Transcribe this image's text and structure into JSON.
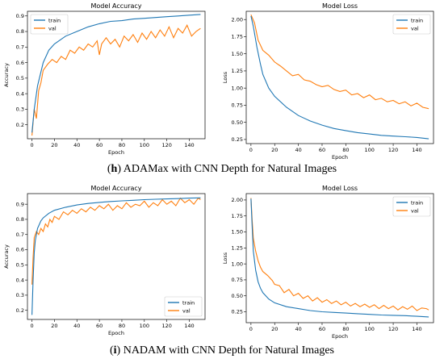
{
  "colors": {
    "train": "#1f77b4",
    "val": "#ff7f0e"
  },
  "captions": [
    {
      "prefix": "(",
      "letter": "h",
      "rest": ") ADAMax with CNN Depth for Natural Images"
    },
    {
      "prefix": "(",
      "letter": "i",
      "rest": ") NADAM with CNN Depth for Natural Images"
    }
  ],
  "chart_data": [
    {
      "type": "line",
      "title": "Model Accuracy",
      "xlabel": "Epoch",
      "ylabel": "Accuracy",
      "xlim": [
        -4,
        154
      ],
      "ylim": [
        0.11,
        0.93
      ],
      "xticks": [
        0,
        20,
        40,
        60,
        80,
        100,
        120,
        140
      ],
      "yticks": [
        0.2,
        0.3,
        0.4,
        0.5,
        0.6,
        0.7,
        0.8,
        0.9
      ],
      "ytick_labels": [
        "0.2",
        "0.3",
        "0.4",
        "0.5",
        "0.6",
        "0.7",
        "0.8",
        "0.9"
      ],
      "legend": "top-left",
      "series": [
        {
          "name": "train",
          "color_key": "train",
          "x": [
            0,
            2,
            5,
            10,
            15,
            20,
            30,
            40,
            50,
            60,
            70,
            80,
            90,
            100,
            110,
            120,
            130,
            140,
            150
          ],
          "y": [
            0.15,
            0.3,
            0.45,
            0.6,
            0.68,
            0.72,
            0.77,
            0.8,
            0.83,
            0.85,
            0.865,
            0.87,
            0.88,
            0.885,
            0.89,
            0.895,
            0.9,
            0.905,
            0.91
          ]
        },
        {
          "name": "val",
          "color_key": "val",
          "x": [
            0,
            2,
            4,
            6,
            8,
            10,
            14,
            18,
            22,
            26,
            30,
            34,
            38,
            42,
            46,
            50,
            54,
            58,
            60,
            62,
            66,
            70,
            74,
            78,
            82,
            86,
            90,
            94,
            98,
            102,
            106,
            110,
            114,
            118,
            122,
            126,
            130,
            134,
            138,
            142,
            146,
            150
          ],
          "y": [
            0.13,
            0.3,
            0.24,
            0.42,
            0.47,
            0.55,
            0.59,
            0.62,
            0.6,
            0.64,
            0.62,
            0.68,
            0.66,
            0.7,
            0.68,
            0.72,
            0.7,
            0.74,
            0.65,
            0.72,
            0.76,
            0.72,
            0.75,
            0.7,
            0.77,
            0.74,
            0.78,
            0.73,
            0.79,
            0.75,
            0.8,
            0.76,
            0.81,
            0.77,
            0.83,
            0.76,
            0.82,
            0.79,
            0.84,
            0.77,
            0.8,
            0.82
          ]
        }
      ]
    },
    {
      "type": "line",
      "title": "Model Loss",
      "xlabel": "Epoch",
      "ylabel": "Loss",
      "xlim": [
        -4,
        154
      ],
      "ylim": [
        0.19,
        2.12
      ],
      "xticks": [
        0,
        20,
        40,
        60,
        80,
        100,
        120,
        140
      ],
      "yticks": [
        0.25,
        0.5,
        0.75,
        1.0,
        1.25,
        1.5,
        1.75,
        2.0
      ],
      "ytick_labels": [
        "0.25",
        "0.50",
        "0.75",
        "1.00",
        "1.25",
        "1.50",
        "1.75",
        "2.00"
      ],
      "legend": "top-right",
      "series": [
        {
          "name": "train",
          "color_key": "train",
          "x": [
            0,
            2,
            5,
            8,
            10,
            15,
            20,
            30,
            40,
            50,
            60,
            70,
            80,
            90,
            100,
            110,
            120,
            130,
            140,
            150
          ],
          "y": [
            2.05,
            1.9,
            1.6,
            1.35,
            1.2,
            1.0,
            0.88,
            0.72,
            0.6,
            0.52,
            0.46,
            0.41,
            0.38,
            0.35,
            0.33,
            0.31,
            0.3,
            0.29,
            0.28,
            0.26
          ]
        },
        {
          "name": "val",
          "color_key": "val",
          "x": [
            0,
            3,
            6,
            10,
            15,
            20,
            25,
            30,
            35,
            40,
            45,
            50,
            55,
            60,
            65,
            70,
            75,
            80,
            85,
            90,
            95,
            100,
            105,
            110,
            115,
            120,
            125,
            130,
            135,
            140,
            145,
            150
          ],
          "y": [
            2.07,
            1.95,
            1.7,
            1.55,
            1.48,
            1.38,
            1.32,
            1.25,
            1.18,
            1.2,
            1.12,
            1.1,
            1.05,
            1.02,
            1.04,
            0.98,
            0.95,
            0.97,
            0.9,
            0.92,
            0.86,
            0.9,
            0.83,
            0.85,
            0.8,
            0.82,
            0.77,
            0.8,
            0.74,
            0.78,
            0.72,
            0.7
          ]
        }
      ]
    },
    {
      "type": "line",
      "title": "Model Accuracy",
      "xlabel": "Epoch",
      "ylabel": "Accuracy",
      "xlim": [
        -4,
        154
      ],
      "ylim": [
        0.14,
        0.97
      ],
      "xticks": [
        0,
        20,
        40,
        60,
        80,
        100,
        120,
        140
      ],
      "yticks": [
        0.2,
        0.3,
        0.4,
        0.5,
        0.6,
        0.7,
        0.8,
        0.9
      ],
      "ytick_labels": [
        "0.2",
        "0.3",
        "0.4",
        "0.5",
        "0.6",
        "0.7",
        "0.8",
        "0.9"
      ],
      "legend": "bottom-right",
      "series": [
        {
          "name": "train",
          "color_key": "train",
          "x": [
            0,
            1,
            2,
            3,
            5,
            8,
            10,
            15,
            20,
            30,
            40,
            50,
            60,
            70,
            80,
            90,
            100,
            110,
            120,
            130,
            140,
            150
          ],
          "y": [
            0.17,
            0.4,
            0.58,
            0.66,
            0.74,
            0.79,
            0.81,
            0.84,
            0.86,
            0.88,
            0.895,
            0.905,
            0.912,
            0.918,
            0.922,
            0.926,
            0.93,
            0.933,
            0.935,
            0.937,
            0.94,
            0.942
          ]
        },
        {
          "name": "val",
          "color_key": "val",
          "x": [
            0,
            1,
            2,
            4,
            6,
            8,
            10,
            12,
            14,
            16,
            18,
            20,
            24,
            28,
            32,
            36,
            40,
            44,
            48,
            52,
            56,
            60,
            64,
            68,
            72,
            76,
            80,
            84,
            88,
            92,
            96,
            100,
            104,
            108,
            112,
            116,
            120,
            124,
            128,
            132,
            136,
            140,
            144,
            148,
            150
          ],
          "y": [
            0.37,
            0.55,
            0.68,
            0.72,
            0.7,
            0.74,
            0.72,
            0.77,
            0.75,
            0.8,
            0.78,
            0.82,
            0.8,
            0.85,
            0.83,
            0.86,
            0.84,
            0.87,
            0.85,
            0.88,
            0.86,
            0.89,
            0.87,
            0.9,
            0.86,
            0.89,
            0.87,
            0.91,
            0.88,
            0.9,
            0.89,
            0.92,
            0.88,
            0.91,
            0.89,
            0.93,
            0.9,
            0.92,
            0.89,
            0.94,
            0.91,
            0.93,
            0.9,
            0.94,
            0.93
          ]
        }
      ]
    },
    {
      "type": "line",
      "title": "Model Loss",
      "xlabel": "Epoch",
      "ylabel": "Loss",
      "xlim": [
        -4,
        154
      ],
      "ylim": [
        0.08,
        2.1
      ],
      "xticks": [
        0,
        20,
        40,
        60,
        80,
        100,
        120,
        140
      ],
      "yticks": [
        0.25,
        0.5,
        0.75,
        1.0,
        1.25,
        1.5,
        1.75,
        2.0
      ],
      "ytick_labels": [
        "0.25",
        "0.50",
        "0.75",
        "1.00",
        "1.25",
        "1.50",
        "1.75",
        "2.00"
      ],
      "legend": "top-right",
      "series": [
        {
          "name": "train",
          "color_key": "train",
          "x": [
            0,
            1,
            2,
            4,
            6,
            8,
            10,
            15,
            20,
            30,
            40,
            50,
            60,
            70,
            80,
            90,
            100,
            110,
            120,
            130,
            140,
            150
          ],
          "y": [
            2.02,
            1.6,
            1.2,
            0.9,
            0.72,
            0.62,
            0.55,
            0.45,
            0.39,
            0.33,
            0.3,
            0.27,
            0.25,
            0.24,
            0.23,
            0.22,
            0.21,
            0.2,
            0.195,
            0.19,
            0.18,
            0.17
          ]
        },
        {
          "name": "val",
          "color_key": "val",
          "x": [
            0,
            1,
            2,
            4,
            6,
            8,
            10,
            14,
            18,
            20,
            24,
            28,
            32,
            36,
            40,
            44,
            48,
            52,
            56,
            60,
            64,
            68,
            72,
            76,
            80,
            84,
            88,
            92,
            96,
            100,
            104,
            108,
            112,
            116,
            120,
            124,
            128,
            132,
            136,
            140,
            144,
            148,
            150
          ],
          "y": [
            2.03,
            1.7,
            1.4,
            1.2,
            1.05,
            0.95,
            0.88,
            0.82,
            0.74,
            0.68,
            0.66,
            0.55,
            0.6,
            0.5,
            0.54,
            0.46,
            0.5,
            0.42,
            0.47,
            0.4,
            0.44,
            0.38,
            0.42,
            0.36,
            0.4,
            0.34,
            0.38,
            0.33,
            0.37,
            0.32,
            0.36,
            0.3,
            0.35,
            0.3,
            0.34,
            0.28,
            0.33,
            0.29,
            0.34,
            0.27,
            0.31,
            0.3,
            0.28
          ]
        }
      ]
    }
  ]
}
